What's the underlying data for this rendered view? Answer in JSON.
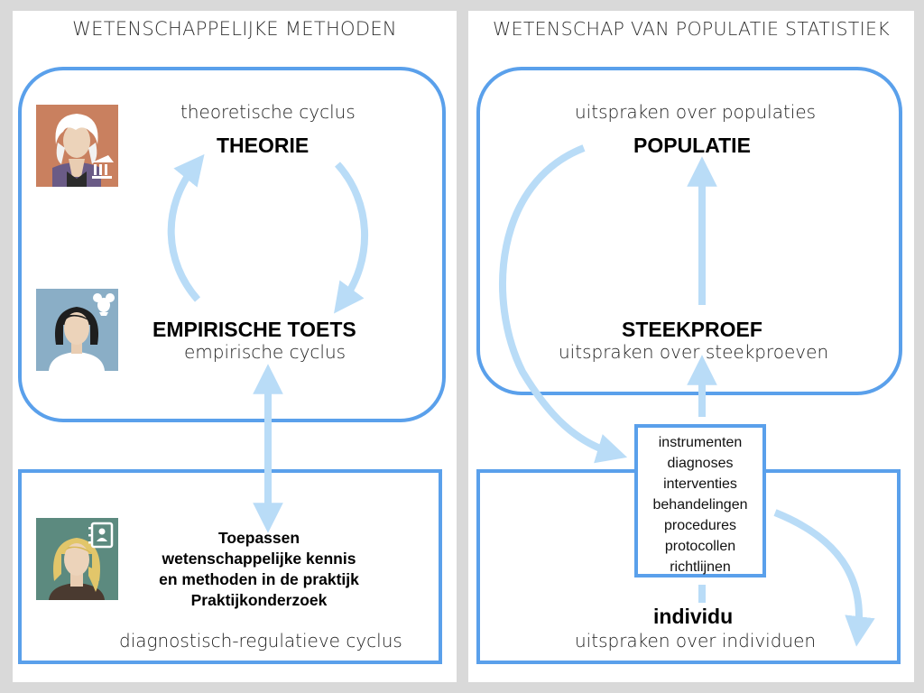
{
  "left_panel": {
    "title": "WETENSCHAPPELIJKE METHODEN",
    "theoretical_cycle_label": "theoretische cyclus",
    "theory_node": "THEORIE",
    "empirical_test_node": "EMPIRISCHE TOETS",
    "empirical_cycle_label": "empirische cyclus",
    "practice_lines": [
      "Toepassen",
      "wetenschappelijke kennis",
      "en methoden in de praktijk",
      "Praktijkonderzoek"
    ],
    "diagnostic_cycle_label": "diagnostisch-regulatieve cyclus"
  },
  "right_panel": {
    "title": "WETENSCHAP VAN POPULATIE STATISTIEK",
    "population_statements_label": "uitspraken over populaties",
    "population_node": "POPULATIE",
    "sample_node": "STEEKPROEF",
    "sample_statements_label": "uitspraken over steekproeven",
    "instruments": [
      "instrumenten",
      "diagnoses",
      "interventies",
      "behandelingen",
      "procedures",
      "protocollen",
      "richtlijnen"
    ],
    "individual_node": "individu",
    "individual_statements_label": "uitspraken over individuen"
  },
  "colors": {
    "box_border": "#5aa0eb",
    "arrow": "#b9dcf7",
    "avatar_theory_bg": "#c9805f",
    "avatar_empirical_bg": "#8aaec6",
    "avatar_practice_bg": "#5c8a7f"
  },
  "icons": {
    "theory_avatar": "scientist-with-building-avatar",
    "empirical_avatar": "researcher-with-lab-mouse-avatar",
    "practice_avatar": "practitioner-with-contact-card-avatar"
  }
}
